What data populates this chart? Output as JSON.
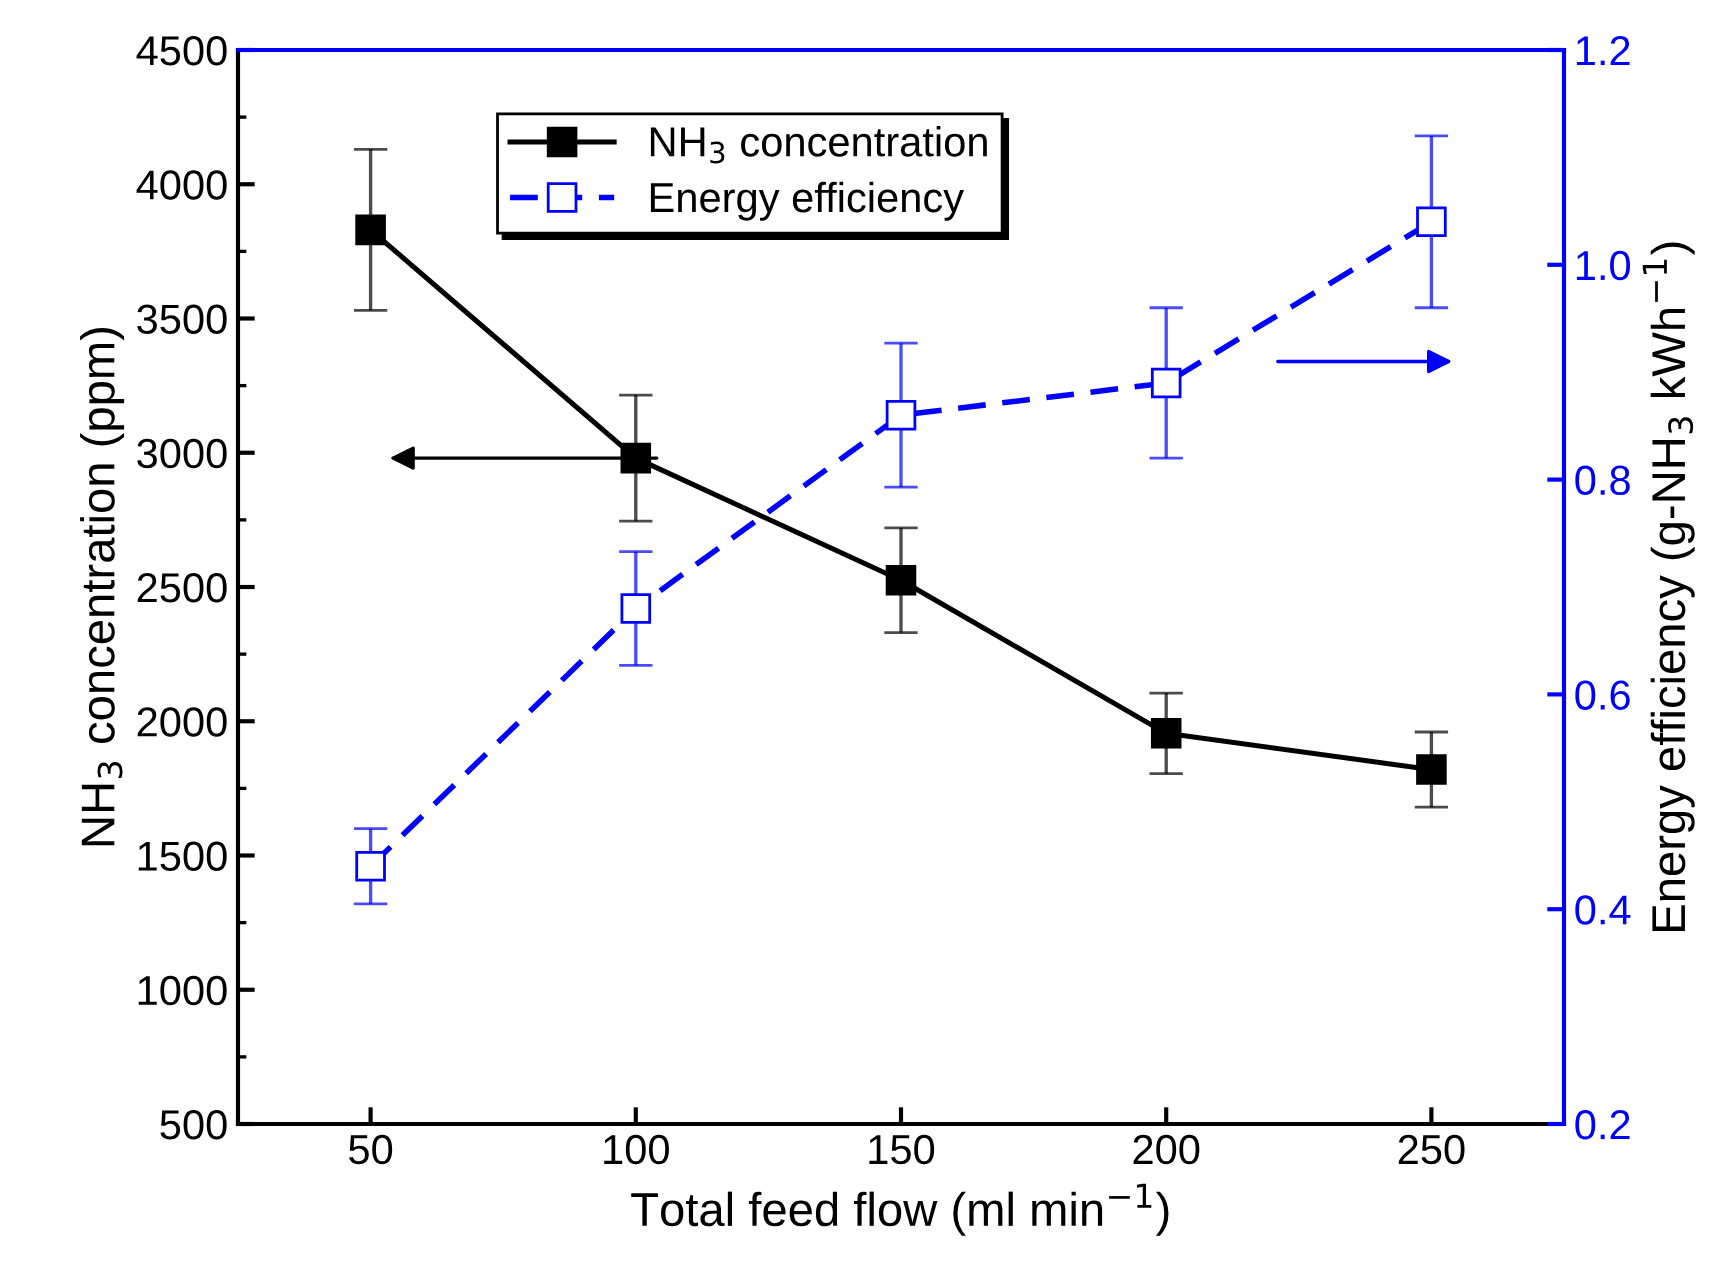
{
  "chart_data": {
    "type": "line",
    "xlabel": "Total feed flow (ml min$^{−1}$)",
    "ylabel": "NH$_{3}$ concentration (ppm)",
    "y2label": "Energy efficiency (g-NH$_{3}$ kWh$^{−1}$)",
    "x": [
      50,
      100,
      150,
      200,
      250
    ],
    "series": [
      {
        "name": "NH$_{3}$ concentration",
        "color": "#000000",
        "values": [
          3830,
          2980,
          2525,
          1955,
          1820
        ],
        "errors": [
          300,
          235,
          195,
          150,
          140
        ],
        "marker": "square",
        "line_style": "solid"
      },
      {
        "name": "Energy efficiency",
        "color": "#0000ff",
        "axis": "y2",
        "values": [
          0.44,
          0.68,
          0.86,
          0.89,
          1.04
        ],
        "errors": [
          0.035,
          0.053,
          0.067,
          0.07,
          0.08
        ],
        "marker": "square",
        "line_style": "dashed"
      }
    ],
    "xlim": [
      25,
      275
    ],
    "xticks": [
      50,
      100,
      150,
      200,
      250
    ],
    "ylim": [
      500,
      4500
    ],
    "yticks": [
      500,
      1000,
      1500,
      2000,
      2500,
      3000,
      3500,
      4000,
      4500
    ],
    "y2lim": [
      0.2,
      1.2
    ],
    "y2ticks": [
      {
        "value": 0.2,
        "label": "0.2"
      },
      {
        "value": 0.4,
        "label": "0.4"
      },
      {
        "value": 0.6,
        "label": "0.6"
      },
      {
        "value": 0.8,
        "label": "0.8"
      },
      {
        "value": 1.0,
        "label": "1.0"
      },
      {
        "value": 1.2,
        "label": "1.2"
      }
    ],
    "grid": false,
    "legend": "top"
  }
}
